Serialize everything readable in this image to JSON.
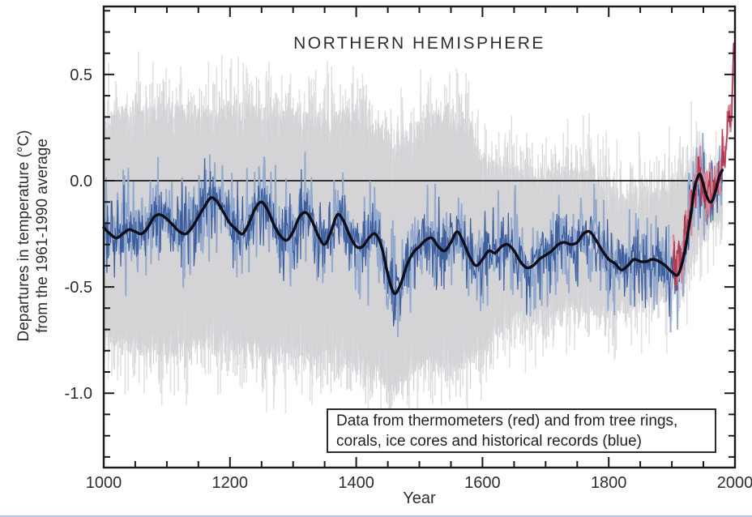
{
  "page": {
    "background": "#ffffff",
    "bottom_strip_color": "#b5c4e0"
  },
  "chart_data": {
    "type": "line",
    "title": "NORTHERN HEMISPHERE",
    "xlabel": "Year",
    "ylabel": [
      "Departures in temperature (°C)",
      "from the 1961-1990 average"
    ],
    "annotation": [
      "Data from thermometers (red) and from tree rings,",
      "corals, ice cores and historical records (blue)"
    ],
    "xlim": [
      1000,
      2000
    ],
    "ylim": [
      -1.35,
      0.82
    ],
    "x_major_ticks": [
      1000,
      1200,
      1400,
      1600,
      1800,
      2000
    ],
    "x_minor_step": 50,
    "y_major_ticks": [
      0.5,
      0.0,
      -0.5,
      -1.0
    ],
    "y_minor_step": 0.1,
    "zero_line": 0.0,
    "grid": false,
    "colors": {
      "frame": "#1a1a1a",
      "text": "#2e2e2e",
      "zero_line": "#1a1a1a",
      "smoothed": "#0d0d18",
      "proxy_blue": "#3d5e9d",
      "proxy_blue_light": "#93a9cd",
      "instrumental_red": "#b23a50",
      "instrumental_red_light": "#d28a9a",
      "uncertainty_gray": "#d4d4d7",
      "uncertainty_gray_light": "#e1e1e4"
    },
    "series": {
      "smoothed": {
        "label": "40-year smoothed reconstruction (black)",
        "anchors": [
          [
            1000,
            -0.22
          ],
          [
            1010,
            -0.25
          ],
          [
            1020,
            -0.27
          ],
          [
            1030,
            -0.25
          ],
          [
            1040,
            -0.23
          ],
          [
            1050,
            -0.24
          ],
          [
            1060,
            -0.25
          ],
          [
            1070,
            -0.22
          ],
          [
            1080,
            -0.17
          ],
          [
            1090,
            -0.16
          ],
          [
            1100,
            -0.18
          ],
          [
            1110,
            -0.21
          ],
          [
            1120,
            -0.24
          ],
          [
            1130,
            -0.25
          ],
          [
            1140,
            -0.22
          ],
          [
            1150,
            -0.17
          ],
          [
            1160,
            -0.12
          ],
          [
            1170,
            -0.08
          ],
          [
            1180,
            -0.1
          ],
          [
            1190,
            -0.15
          ],
          [
            1200,
            -0.2
          ],
          [
            1210,
            -0.23
          ],
          [
            1220,
            -0.25
          ],
          [
            1230,
            -0.2
          ],
          [
            1240,
            -0.13
          ],
          [
            1250,
            -0.1
          ],
          [
            1260,
            -0.14
          ],
          [
            1270,
            -0.21
          ],
          [
            1280,
            -0.26
          ],
          [
            1290,
            -0.28
          ],
          [
            1300,
            -0.24
          ],
          [
            1310,
            -0.17
          ],
          [
            1320,
            -0.15
          ],
          [
            1330,
            -0.19
          ],
          [
            1340,
            -0.26
          ],
          [
            1350,
            -0.3
          ],
          [
            1360,
            -0.24
          ],
          [
            1370,
            -0.16
          ],
          [
            1380,
            -0.19
          ],
          [
            1390,
            -0.26
          ],
          [
            1400,
            -0.31
          ],
          [
            1410,
            -0.31
          ],
          [
            1420,
            -0.27
          ],
          [
            1430,
            -0.25
          ],
          [
            1440,
            -0.31
          ],
          [
            1450,
            -0.44
          ],
          [
            1460,
            -0.53
          ],
          [
            1470,
            -0.49
          ],
          [
            1480,
            -0.4
          ],
          [
            1490,
            -0.34
          ],
          [
            1500,
            -0.31
          ],
          [
            1510,
            -0.28
          ],
          [
            1520,
            -0.27
          ],
          [
            1530,
            -0.31
          ],
          [
            1540,
            -0.33
          ],
          [
            1550,
            -0.29
          ],
          [
            1560,
            -0.24
          ],
          [
            1570,
            -0.29
          ],
          [
            1580,
            -0.36
          ],
          [
            1590,
            -0.4
          ],
          [
            1600,
            -0.37
          ],
          [
            1610,
            -0.33
          ],
          [
            1620,
            -0.34
          ],
          [
            1630,
            -0.31
          ],
          [
            1640,
            -0.3
          ],
          [
            1650,
            -0.33
          ],
          [
            1660,
            -0.38
          ],
          [
            1670,
            -0.41
          ],
          [
            1680,
            -0.4
          ],
          [
            1690,
            -0.37
          ],
          [
            1700,
            -0.35
          ],
          [
            1710,
            -0.33
          ],
          [
            1720,
            -0.3
          ],
          [
            1730,
            -0.29
          ],
          [
            1740,
            -0.3
          ],
          [
            1750,
            -0.29
          ],
          [
            1760,
            -0.25
          ],
          [
            1770,
            -0.24
          ],
          [
            1780,
            -0.28
          ],
          [
            1790,
            -0.33
          ],
          [
            1800,
            -0.37
          ],
          [
            1810,
            -0.39
          ],
          [
            1820,
            -0.42
          ],
          [
            1830,
            -0.4
          ],
          [
            1840,
            -0.37
          ],
          [
            1850,
            -0.38
          ],
          [
            1860,
            -0.38
          ],
          [
            1870,
            -0.37
          ],
          [
            1880,
            -0.38
          ],
          [
            1890,
            -0.4
          ],
          [
            1900,
            -0.43
          ],
          [
            1910,
            -0.44
          ],
          [
            1920,
            -0.34
          ],
          [
            1930,
            -0.16
          ],
          [
            1935,
            -0.05
          ],
          [
            1940,
            0.01
          ],
          [
            1945,
            0.03
          ],
          [
            1950,
            -0.02
          ],
          [
            1955,
            -0.07
          ],
          [
            1960,
            -0.1
          ],
          [
            1965,
            -0.09
          ],
          [
            1970,
            -0.04
          ],
          [
            1975,
            0.02
          ],
          [
            1980,
            0.05
          ]
        ]
      },
      "annual_proxy": {
        "label": "annual proxy data: tree rings, corals, ice cores, historical records (blue)",
        "start": 1000,
        "end": 1980,
        "noise_base": 0.07,
        "noise_spike": 0.18,
        "light_noise_base": 0.1,
        "light_noise_spike": 0.24
      },
      "instrumental": {
        "label": "thermometer record (red)",
        "start": 1902,
        "end": 2000,
        "noise_base": 0.05,
        "noise_spike": 0.1,
        "anchors": [
          [
            1902,
            -0.3
          ],
          [
            1907,
            -0.38
          ],
          [
            1912,
            -0.35
          ],
          [
            1917,
            -0.32
          ],
          [
            1922,
            -0.25
          ],
          [
            1927,
            -0.18
          ],
          [
            1932,
            -0.1
          ],
          [
            1937,
            -0.02
          ],
          [
            1940,
            0.04
          ],
          [
            1944,
            0.06
          ],
          [
            1948,
            -0.02
          ],
          [
            1952,
            0.0
          ],
          [
            1956,
            -0.05
          ],
          [
            1960,
            0.02
          ],
          [
            1964,
            -0.08
          ],
          [
            1968,
            -0.05
          ],
          [
            1972,
            -0.02
          ],
          [
            1976,
            0.0
          ],
          [
            1980,
            0.1
          ],
          [
            1984,
            0.12
          ],
          [
            1988,
            0.25
          ],
          [
            1991,
            0.3
          ],
          [
            1994,
            0.28
          ],
          [
            1997,
            0.55
          ],
          [
            1998,
            0.68
          ],
          [
            2000,
            0.62
          ]
        ]
      },
      "uncertainty": {
        "label": "uncertainty range (gray)",
        "start": 1000,
        "end": 1980,
        "top_anchors": [
          [
            1000,
            0.3
          ],
          [
            1050,
            0.32
          ],
          [
            1100,
            0.33
          ],
          [
            1150,
            0.3
          ],
          [
            1200,
            0.32
          ],
          [
            1250,
            0.33
          ],
          [
            1300,
            0.3
          ],
          [
            1350,
            0.28
          ],
          [
            1400,
            0.3
          ],
          [
            1440,
            0.22
          ],
          [
            1460,
            0.12
          ],
          [
            1500,
            0.25
          ],
          [
            1540,
            0.3
          ],
          [
            1570,
            0.28
          ],
          [
            1600,
            0.1
          ],
          [
            1620,
            0.08
          ],
          [
            1650,
            0.05
          ],
          [
            1680,
            0.02
          ],
          [
            1700,
            0.02
          ],
          [
            1720,
            0.05
          ],
          [
            1750,
            0.03
          ],
          [
            1770,
            0.05
          ],
          [
            1800,
            -0.05
          ],
          [
            1820,
            -0.08
          ],
          [
            1840,
            -0.05
          ],
          [
            1860,
            -0.08
          ],
          [
            1880,
            -0.05
          ],
          [
            1900,
            -0.02
          ],
          [
            1920,
            0.02
          ],
          [
            1940,
            0.1
          ],
          [
            1950,
            0.08
          ],
          [
            1960,
            0.02
          ],
          [
            1970,
            0.02
          ],
          [
            1980,
            0.05
          ]
        ],
        "bottom_anchors": [
          [
            1000,
            -0.72
          ],
          [
            1050,
            -0.78
          ],
          [
            1100,
            -0.8
          ],
          [
            1150,
            -0.76
          ],
          [
            1200,
            -0.78
          ],
          [
            1250,
            -0.8
          ],
          [
            1300,
            -0.8
          ],
          [
            1350,
            -0.82
          ],
          [
            1400,
            -0.86
          ],
          [
            1440,
            -0.92
          ],
          [
            1460,
            -0.97
          ],
          [
            1480,
            -0.9
          ],
          [
            1500,
            -0.85
          ],
          [
            1550,
            -0.86
          ],
          [
            1600,
            -0.82
          ],
          [
            1620,
            -0.7
          ],
          [
            1650,
            -0.65
          ],
          [
            1700,
            -0.62
          ],
          [
            1750,
            -0.58
          ],
          [
            1800,
            -0.62
          ],
          [
            1850,
            -0.56
          ],
          [
            1880,
            -0.55
          ],
          [
            1900,
            -0.52
          ],
          [
            1920,
            -0.45
          ],
          [
            1940,
            -0.3
          ],
          [
            1960,
            -0.22
          ],
          [
            1980,
            -0.18
          ]
        ]
      }
    }
  }
}
